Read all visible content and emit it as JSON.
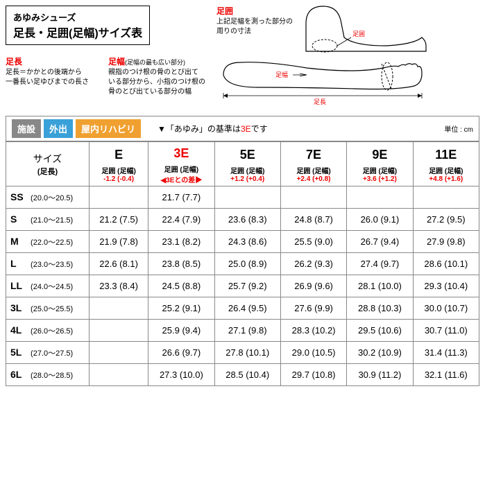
{
  "header": {
    "brand": "あゆみシューズ",
    "title": "足長・足囲(足幅)サイズ表"
  },
  "definitions": {
    "sokucho": {
      "title": "足長",
      "text1": "足長＝かかとの後端から",
      "text2": "一番長い足ゆびまでの長さ"
    },
    "sokuhaba": {
      "title": "足幅",
      "subtitle": "(足幅の最も広い部分)",
      "text1": "親指のつけ根の骨のとび出て",
      "text2": "いる部分から、小指のつけ根の",
      "text3": "骨のとび出ている部分の幅"
    },
    "sokui": {
      "title": "足囲",
      "text1": "上記足幅を測った部分の",
      "text2": "周りの寸法"
    }
  },
  "diagram_labels": {
    "haba": "足幅",
    "i": "足囲",
    "cho": "足長"
  },
  "tags": {
    "t1": "施設",
    "t2": "外出",
    "t3": "屋内リハビリ"
  },
  "standard": {
    "prefix": "▼「あゆみ」の基準は",
    "highlight": "3E",
    "suffix": "です"
  },
  "unit": "単位 : cm",
  "table": {
    "size_header": {
      "main": "サイズ",
      "sub": "(足長)"
    },
    "columns": [
      {
        "code": "E",
        "sub": "足囲 (足幅)",
        "diff": "-1.2 (-0.4)",
        "diff_red": true,
        "red": false
      },
      {
        "code": "3E",
        "sub": "足囲 (足幅)",
        "diff": "◀3Eとの差▶",
        "diff_red": true,
        "red": true
      },
      {
        "code": "5E",
        "sub": "足囲 (足幅)",
        "diff": "+1.2 (+0.4)",
        "diff_red": true,
        "red": false
      },
      {
        "code": "7E",
        "sub": "足囲 (足幅)",
        "diff": "+2.4 (+0.8)",
        "diff_red": true,
        "red": false
      },
      {
        "code": "9E",
        "sub": "足囲 (足幅)",
        "diff": "+3.6 (+1.2)",
        "diff_red": true,
        "red": false
      },
      {
        "code": "11E",
        "sub": "足囲 (足幅)",
        "diff": "+4.8 (+1.6)",
        "diff_red": true,
        "red": false
      }
    ],
    "rows": [
      {
        "code": "SS",
        "range": "(20.0～20.5)",
        "cells": [
          "",
          "21.7  (7.7)",
          "",
          "",
          "",
          ""
        ]
      },
      {
        "code": "S",
        "range": "(21.0～21.5)",
        "cells": [
          "21.2 (7.5)",
          "22.4  (7.9)",
          "23.6  (8.3)",
          "24.8 (8.7)",
          "26.0  (9.1)",
          "27.2  (9.5)"
        ]
      },
      {
        "code": "M",
        "range": "(22.0～22.5)",
        "cells": [
          "21.9 (7.8)",
          "23.1  (8.2)",
          "24.3  (8.6)",
          "25.5 (9.0)",
          "26.7  (9.4)",
          "27.9  (9.8)"
        ]
      },
      {
        "code": "L",
        "range": "(23.0～23.5)",
        "cells": [
          "22.6 (8.1)",
          "23.8  (8.5)",
          "25.0  (8.9)",
          "26.2 (9.3)",
          "27.4  (9.7)",
          "28.6 (10.1)"
        ]
      },
      {
        "code": "LL",
        "range": "(24.0～24.5)",
        "cells": [
          "23.3 (8.4)",
          "24.5  (8.8)",
          "25.7  (9.2)",
          "26.9 (9.6)",
          "28.1 (10.0)",
          "29.3 (10.4)"
        ]
      },
      {
        "code": "3L",
        "range": "(25.0～25.5)",
        "cells": [
          "",
          "25.2  (9.1)",
          "26.4  (9.5)",
          "27.6 (9.9)",
          "28.8 (10.3)",
          "30.0 (10.7)"
        ]
      },
      {
        "code": "4L",
        "range": "(26.0～26.5)",
        "cells": [
          "",
          "25.9  (9.4)",
          "27.1  (9.8)",
          "28.3 (10.2)",
          "29.5 (10.6)",
          "30.7 (11.0)"
        ]
      },
      {
        "code": "5L",
        "range": "(27.0～27.5)",
        "cells": [
          "",
          "26.6  (9.7)",
          "27.8 (10.1)",
          "29.0 (10.5)",
          "30.2 (10.9)",
          "31.4 (11.3)"
        ]
      },
      {
        "code": "6L",
        "range": "(28.0～28.5)",
        "cells": [
          "",
          "27.3 (10.0)",
          "28.5 (10.4)",
          "29.7 (10.8)",
          "30.9 (11.2)",
          "32.1 (11.6)"
        ]
      }
    ]
  },
  "colors": {
    "red": "#e00000",
    "border": "#888888",
    "tag_gray": "#888888",
    "tag_blue": "#3aa0d8",
    "tag_orange": "#f0a030"
  }
}
